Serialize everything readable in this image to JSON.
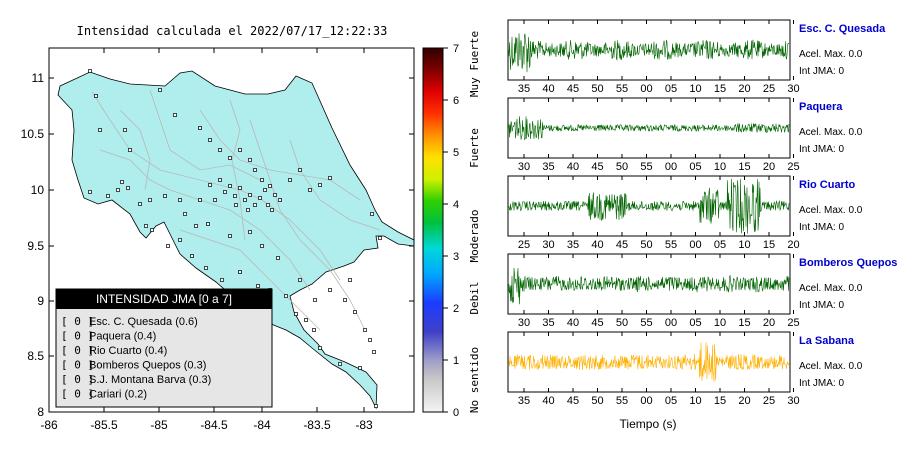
{
  "map": {
    "title": "Intensidad calculada el 2022/07/17_12:22:33",
    "lat_ticks": [
      "11",
      "10.5",
      "10",
      "9.5",
      "9",
      "8.5",
      "8"
    ],
    "lon_ticks": [
      "-86",
      "-85.5",
      "-85",
      "-84.5",
      "-84",
      "-83.5",
      "-83"
    ],
    "land_color": "#b0eeee",
    "legend": {
      "header": "INTENSIDAD JMA [0 a 7]",
      "items": [
        {
          "level": "[ 0 ]",
          "label": "Esc. C. Quesada (0.6)"
        },
        {
          "level": "[ 0 ]",
          "label": "Paquera (0.4)"
        },
        {
          "level": "[ 0 ]",
          "label": "Rio Cuarto (0.4)"
        },
        {
          "level": "[ 0 ]",
          "label": "Bomberos Quepos (0.3)"
        },
        {
          "level": "[ 0 ]",
          "label": "S.J. Montana Barva (0.3)"
        },
        {
          "level": "[ 0 ]",
          "label": "Cariari (0.2)"
        }
      ]
    }
  },
  "colorbar": {
    "ticks": [
      "7",
      "6",
      "5",
      "4",
      "3",
      "2",
      "1",
      "0"
    ],
    "categories": [
      "Muy Fuerte",
      "Fuerte",
      "Moderado",
      "Debil",
      "No sentido"
    ]
  },
  "waveforms": {
    "xlabel": "Tiempo (s)",
    "acc_label": "Acel. Max. 0.0",
    "jma_label": "Int JMA: 0",
    "stations": [
      {
        "name": "Esc. C. Quesada",
        "color": "#006400",
        "ticks": [
          "35",
          "40",
          "45",
          "50",
          "55",
          "00",
          "05",
          "10",
          "15",
          "20",
          "25",
          "30"
        ]
      },
      {
        "name": "Paquera",
        "color": "#006400",
        "ticks": [
          "30",
          "35",
          "40",
          "45",
          "50",
          "55",
          "00",
          "05",
          "10",
          "15",
          "20",
          "25"
        ]
      },
      {
        "name": "Rio Cuarto",
        "color": "#006400",
        "ticks": [
          "25",
          "30",
          "35",
          "40",
          "45",
          "50",
          "55",
          "00",
          "05",
          "10",
          "15",
          "20"
        ]
      },
      {
        "name": "Bomberos Quepos",
        "color": "#006400",
        "ticks": [
          "30",
          "35",
          "40",
          "45",
          "50",
          "55",
          "00",
          "05",
          "10",
          "15",
          "20",
          "25"
        ]
      },
      {
        "name": "La Sabana",
        "color": "#ffb000",
        "ticks": [
          "35",
          "40",
          "45",
          "50",
          "55",
          "00",
          "05",
          "10",
          "15",
          "20",
          "25",
          "30"
        ]
      }
    ]
  }
}
